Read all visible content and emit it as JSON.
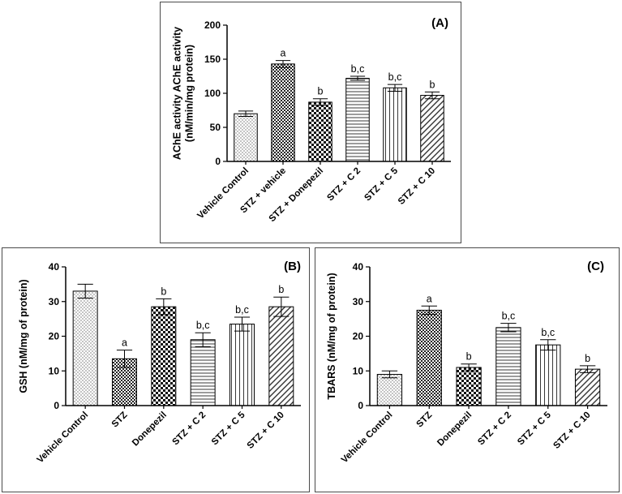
{
  "chart_data": [
    {
      "type": "bar",
      "panel_label": "(A)",
      "ylabel_lines": [
        "AChE activity AChE activity",
        "(nM/min/mg protein)"
      ],
      "xlabel": "",
      "ylim": [
        0,
        200
      ],
      "yticks": [
        0,
        50,
        100,
        150,
        200
      ],
      "categories": [
        "Vehicle Control",
        "STZ + vehicle",
        "STZ + Donepezil",
        "STZ + C 2",
        "STZ + C 5",
        "STZ + C 10"
      ],
      "values": [
        70,
        143,
        87,
        122,
        108,
        97
      ],
      "errors": [
        4,
        5,
        5,
        3,
        5,
        5
      ],
      "significance": [
        "",
        "a",
        "b",
        "b,c",
        "b,c",
        "b"
      ],
      "patterns": [
        "dots",
        "dense-check",
        "check",
        "hlines",
        "vlines",
        "diag"
      ],
      "grid": false
    },
    {
      "type": "bar",
      "panel_label": "(B)",
      "ylabel_lines": [
        "GSH (nM/mg of protein)"
      ],
      "xlabel": "",
      "ylim": [
        0,
        40
      ],
      "yticks": [
        0,
        10,
        20,
        30,
        40
      ],
      "categories": [
        "Vehicle Control",
        "STZ",
        "Donepezil",
        "STZ + C 2",
        "STZ + C 5",
        "STZ + C 10"
      ],
      "values": [
        33,
        13.5,
        28.5,
        19,
        23.5,
        28.5
      ],
      "errors": [
        2,
        2.5,
        2.3,
        2,
        2,
        2.8
      ],
      "significance": [
        "",
        "a",
        "b",
        "b,c",
        "b,c",
        "b"
      ],
      "patterns": [
        "dots",
        "dense-check",
        "check",
        "hlines",
        "vlines",
        "diag"
      ],
      "grid": false
    },
    {
      "type": "bar",
      "panel_label": "(C)",
      "ylabel_lines": [
        "TBARS (nM/mg of protein)"
      ],
      "xlabel": "",
      "ylim": [
        0,
        40
      ],
      "yticks": [
        0,
        10,
        20,
        30,
        40
      ],
      "categories": [
        "Vehicle Control",
        "STZ",
        "Donepezil",
        "STZ + C 2",
        "STZ + C 5",
        "STZ + C 10"
      ],
      "values": [
        9,
        27.5,
        11,
        22.5,
        17.5,
        10.5
      ],
      "errors": [
        1,
        1.2,
        1,
        1.2,
        1.5,
        1
      ],
      "significance": [
        "",
        "a",
        "b",
        "b,c",
        "b,c",
        "b"
      ],
      "patterns": [
        "dots",
        "dense-check",
        "check",
        "hlines",
        "vlines",
        "diag"
      ],
      "grid": false
    }
  ]
}
